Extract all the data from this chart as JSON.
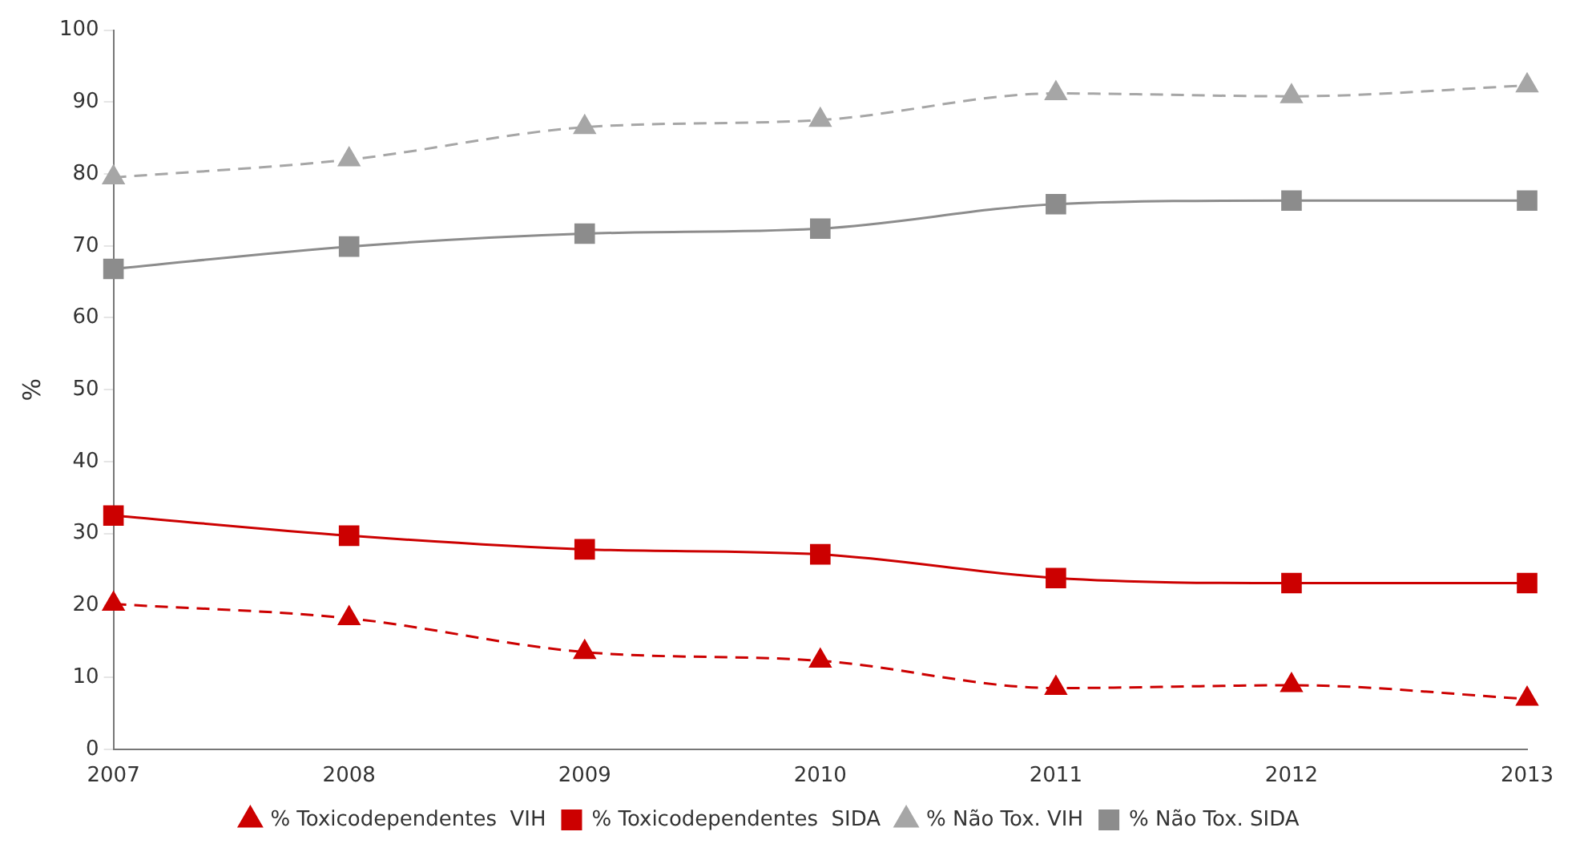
{
  "chart_data": {
    "type": "line",
    "ylabel": "%",
    "categories": [
      "2007",
      "2008",
      "2009",
      "2010",
      "2011",
      "2012",
      "2013"
    ],
    "ylim": [
      0,
      100
    ],
    "yticks": [
      0,
      10,
      20,
      30,
      40,
      50,
      60,
      70,
      80,
      90,
      100
    ],
    "grid": false,
    "legend": "bottom",
    "series": [
      {
        "name": "% Toxicodependentes  VIH",
        "color": "#cc0000",
        "marker": "triangle",
        "line_style": "dashed",
        "values": [
          20.2,
          18.2,
          13.5,
          12.3,
          8.5,
          8.9,
          7.0
        ]
      },
      {
        "name": "% Toxicodependentes  SIDA",
        "color": "#cc0000",
        "marker": "square",
        "line_style": "solid",
        "values": [
          32.5,
          29.7,
          27.8,
          27.1,
          23.8,
          23.1,
          23.1
        ]
      },
      {
        "name": "% Não Tox. VIH",
        "color": "#a6a6a6",
        "marker": "triangle",
        "line_style": "dashed",
        "values": [
          79.5,
          82.0,
          86.5,
          87.5,
          91.2,
          90.8,
          92.3
        ]
      },
      {
        "name": "% Não Tox. SIDA",
        "color": "#8c8c8c",
        "marker": "square",
        "line_style": "solid",
        "values": [
          66.8,
          69.9,
          71.7,
          72.4,
          75.8,
          76.3,
          76.3
        ]
      }
    ]
  }
}
